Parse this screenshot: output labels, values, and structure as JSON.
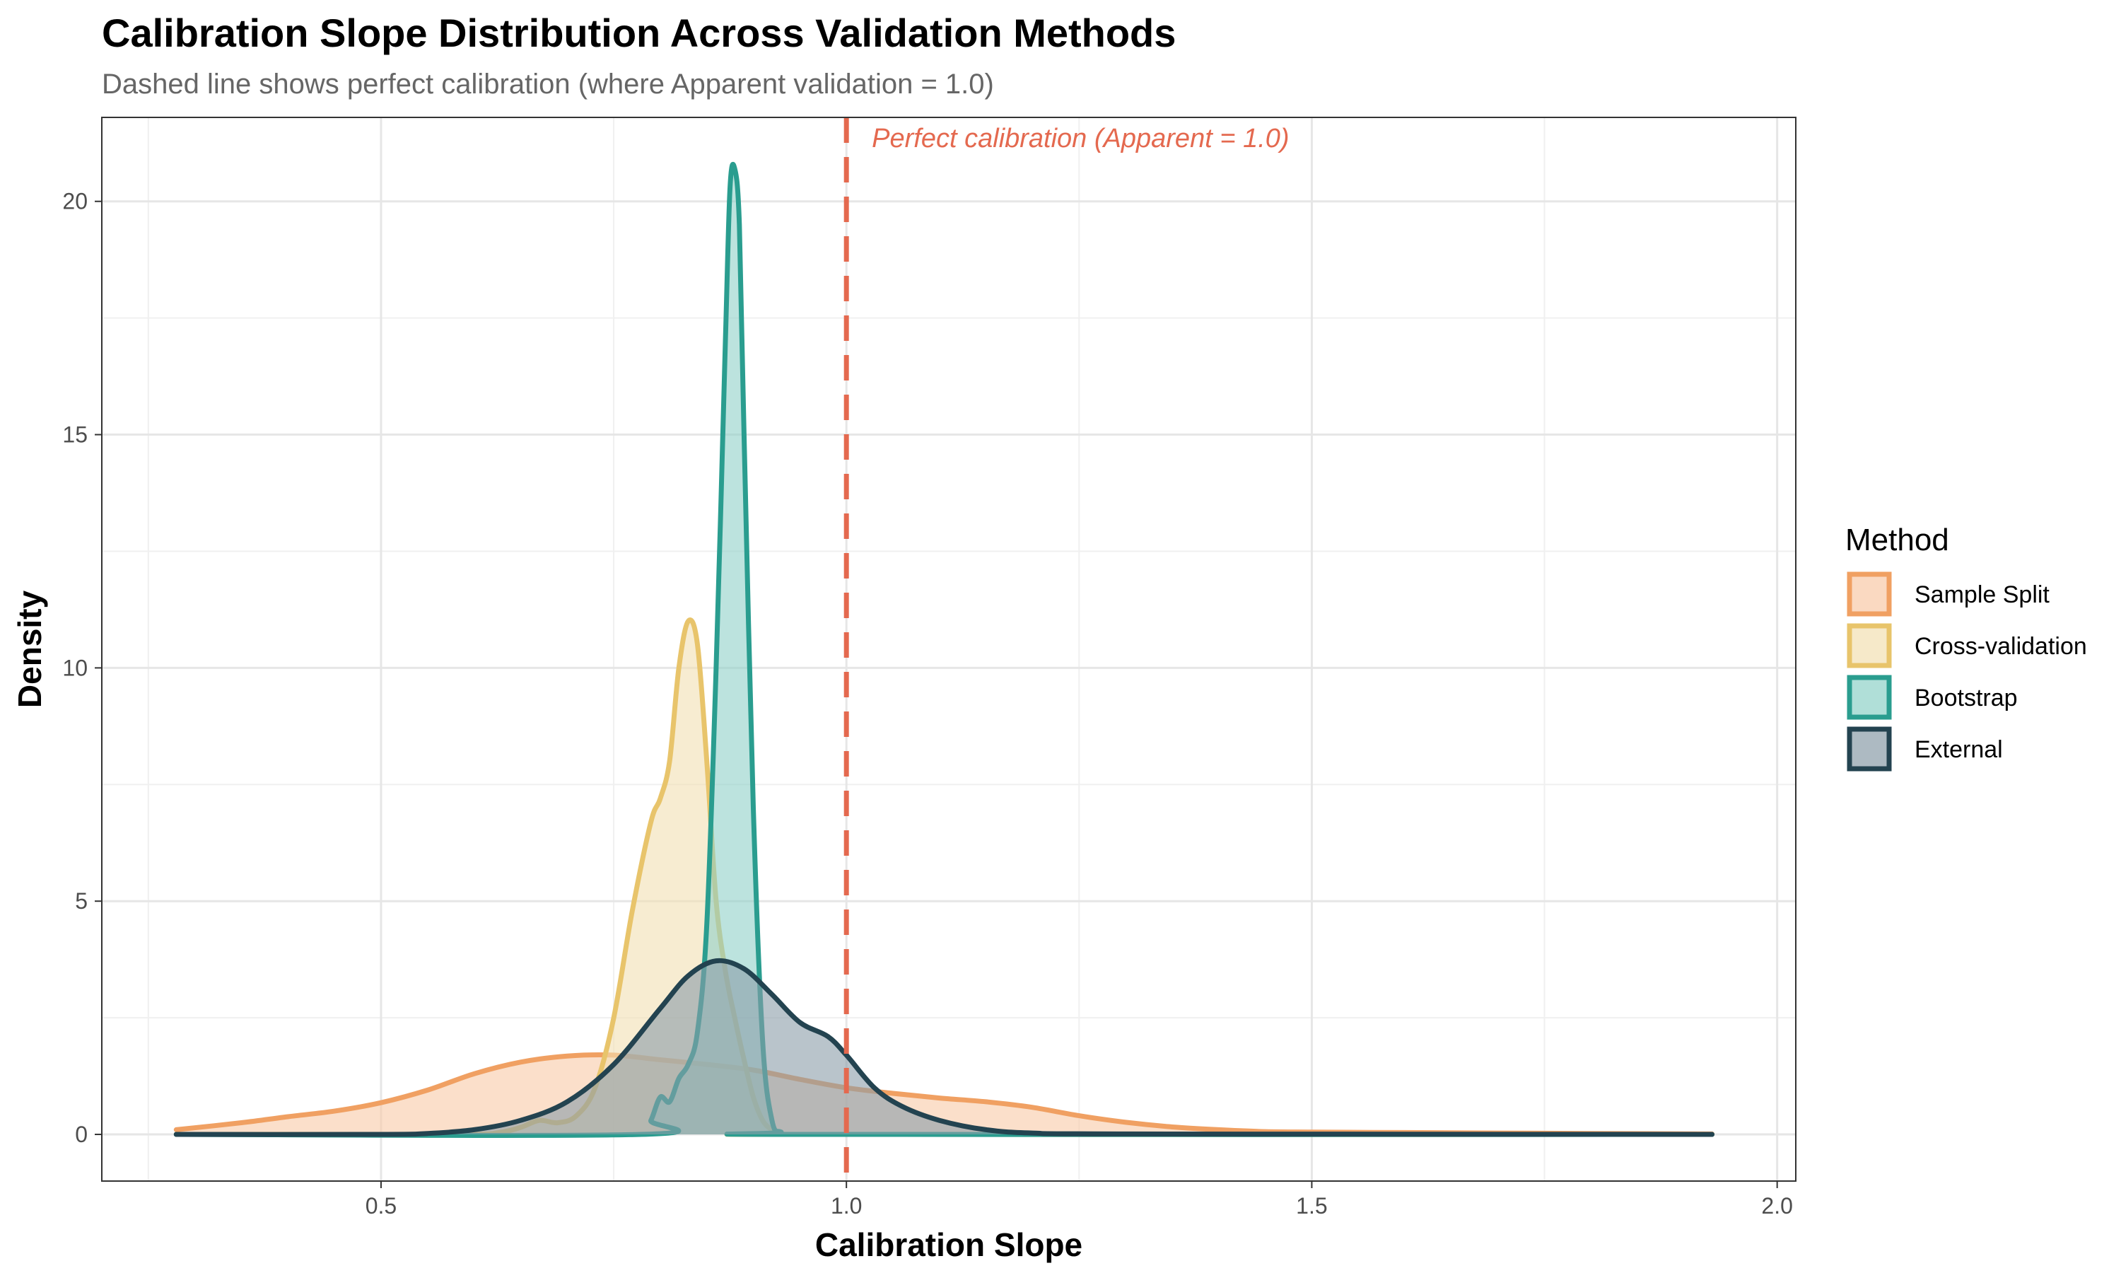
{
  "chart_data": {
    "type": "area",
    "title": "Calibration Slope Distribution Across Validation Methods",
    "subtitle": "Dashed line shows perfect calibration (where Apparent validation = 1.0)",
    "xlabel": "Calibration Slope",
    "ylabel": "Density",
    "xlim": [
      0.2,
      2.02
    ],
    "ylim": [
      -1.0,
      21.8
    ],
    "x_ticks": [
      0.5,
      1.0,
      1.5,
      2.0
    ],
    "x_tick_labels": [
      "0.5",
      "1.0",
      "1.5",
      "2.0"
    ],
    "y_ticks": [
      0,
      5,
      10,
      15,
      20
    ],
    "y_tick_labels": [
      "0",
      "5",
      "10",
      "15",
      "20"
    ],
    "grid": true,
    "legend": {
      "title": "Method",
      "position": "right"
    },
    "reference_line": {
      "x": 1.0,
      "label": "Perfect calibration (Apparent = 1.0)",
      "color": "#E4694F",
      "style": "dashed"
    },
    "series": [
      {
        "name": "Sample Split",
        "line_color": "#F0A062",
        "fill_color": "#F8C9A6",
        "points": [
          [
            0.28,
            0.1
          ],
          [
            0.35,
            0.25
          ],
          [
            0.4,
            0.38
          ],
          [
            0.45,
            0.5
          ],
          [
            0.5,
            0.68
          ],
          [
            0.55,
            0.95
          ],
          [
            0.6,
            1.3
          ],
          [
            0.65,
            1.55
          ],
          [
            0.7,
            1.68
          ],
          [
            0.75,
            1.7
          ],
          [
            0.8,
            1.6
          ],
          [
            0.85,
            1.5
          ],
          [
            0.9,
            1.38
          ],
          [
            0.95,
            1.18
          ],
          [
            1.0,
            1.0
          ],
          [
            1.05,
            0.88
          ],
          [
            1.1,
            0.78
          ],
          [
            1.15,
            0.7
          ],
          [
            1.2,
            0.58
          ],
          [
            1.25,
            0.4
          ],
          [
            1.3,
            0.26
          ],
          [
            1.35,
            0.16
          ],
          [
            1.4,
            0.1
          ],
          [
            1.45,
            0.06
          ],
          [
            1.5,
            0.05
          ],
          [
            1.6,
            0.04
          ],
          [
            1.7,
            0.03
          ],
          [
            1.8,
            0.02
          ],
          [
            1.93,
            0.01
          ]
        ]
      },
      {
        "name": "Cross-validation",
        "line_color": "#E8C46B",
        "fill_color": "#F2E0B2",
        "points": [
          [
            0.28,
            0.0
          ],
          [
            0.5,
            0.0
          ],
          [
            0.6,
            0.0
          ],
          [
            0.63,
            0.05
          ],
          [
            0.65,
            0.15
          ],
          [
            0.67,
            0.3
          ],
          [
            0.69,
            0.25
          ],
          [
            0.71,
            0.4
          ],
          [
            0.73,
            1.0
          ],
          [
            0.75,
            2.5
          ],
          [
            0.77,
            4.8
          ],
          [
            0.79,
            6.7
          ],
          [
            0.8,
            7.2
          ],
          [
            0.81,
            8.0
          ],
          [
            0.82,
            10.0
          ],
          [
            0.83,
            11.0
          ],
          [
            0.84,
            10.5
          ],
          [
            0.85,
            8.0
          ],
          [
            0.86,
            5.0
          ],
          [
            0.87,
            3.5
          ],
          [
            0.88,
            2.5
          ],
          [
            0.89,
            1.6
          ],
          [
            0.9,
            0.8
          ],
          [
            0.91,
            0.3
          ],
          [
            0.92,
            0.1
          ],
          [
            0.93,
            0.02
          ],
          [
            0.95,
            0.0
          ],
          [
            1.93,
            0.0
          ]
        ]
      },
      {
        "name": "Bootstrap",
        "line_color": "#2A9D8F",
        "fill_color": "#8FD1C8",
        "points": [
          [
            0.28,
            0.0
          ],
          [
            0.78,
            0.0
          ],
          [
            0.79,
            0.3
          ],
          [
            0.8,
            0.8
          ],
          [
            0.81,
            0.7
          ],
          [
            0.82,
            1.2
          ],
          [
            0.83,
            1.5
          ],
          [
            0.84,
            2.2
          ],
          [
            0.85,
            4.5
          ],
          [
            0.86,
            10.0
          ],
          [
            0.87,
            17.0
          ],
          [
            0.875,
            20.3
          ],
          [
            0.88,
            20.7
          ],
          [
            0.885,
            19.5
          ],
          [
            0.89,
            15.0
          ],
          [
            0.9,
            7.0
          ],
          [
            0.91,
            2.0
          ],
          [
            0.92,
            0.3
          ],
          [
            0.93,
            0.05
          ],
          [
            0.95,
            0.0
          ],
          [
            1.93,
            0.0
          ]
        ]
      },
      {
        "name": "External",
        "line_color": "#234350",
        "fill_color": "#8A9DA8",
        "points": [
          [
            0.28,
            0.0
          ],
          [
            0.5,
            0.0
          ],
          [
            0.55,
            0.02
          ],
          [
            0.6,
            0.1
          ],
          [
            0.65,
            0.3
          ],
          [
            0.7,
            0.7
          ],
          [
            0.75,
            1.5
          ],
          [
            0.8,
            2.7
          ],
          [
            0.83,
            3.4
          ],
          [
            0.86,
            3.72
          ],
          [
            0.89,
            3.55
          ],
          [
            0.92,
            3.0
          ],
          [
            0.95,
            2.4
          ],
          [
            0.98,
            2.1
          ],
          [
            1.0,
            1.7
          ],
          [
            1.03,
            1.0
          ],
          [
            1.06,
            0.6
          ],
          [
            1.1,
            0.3
          ],
          [
            1.15,
            0.1
          ],
          [
            1.2,
            0.03
          ],
          [
            1.3,
            0.01
          ],
          [
            1.93,
            0.0
          ]
        ]
      }
    ]
  }
}
